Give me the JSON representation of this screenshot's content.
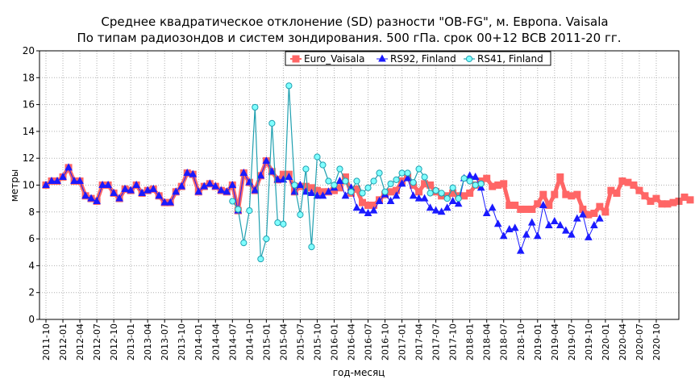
{
  "chart_data": {
    "type": "line",
    "title": "Среднее квадратическое отклонение (SD) разности \"OB-FG\", м. Европа. Vaisala",
    "subtitle": "По типам радиозондов и систем зондирования. 500 гПа. срок 00+12 ВСВ 2011-20 гг.",
    "xlabel": "год-месяц",
    "ylabel": "метры",
    "ylim": [
      0,
      20
    ],
    "yticks": [
      0,
      2,
      4,
      6,
      8,
      10,
      12,
      14,
      16,
      18,
      20
    ],
    "x_start": "2011-10",
    "x_end": "2020-12",
    "xtick_labels": [
      "2011-10",
      "2012-01",
      "2012-04",
      "2012-07",
      "2012-10",
      "2013-01",
      "2013-04",
      "2013-07",
      "2013-10",
      "2014-01",
      "2014-04",
      "2014-07",
      "2014-10",
      "2015-01",
      "2015-04",
      "2015-07",
      "2015-10",
      "2016-01",
      "2016-04",
      "2016-07",
      "2016-10",
      "2017-01",
      "2017-04",
      "2017-07",
      "2017-10",
      "2018-01",
      "2018-04",
      "2018-07",
      "2018-10",
      "2019-01",
      "2019-04",
      "2019-07",
      "2019-10",
      "2020-01",
      "2020-04",
      "2020-07",
      "2020-10"
    ],
    "grid": true,
    "legend_position": "top-right",
    "colors": {
      "euro": "#ff6666",
      "rs92": "#1a1aff",
      "rs41_line": "#20a0b0",
      "rs41_marker": "#80ffff",
      "grid": "#b0b0b0"
    },
    "series": [
      {
        "name": "Euro_Vaisala",
        "marker": "square",
        "start": "2011-10",
        "values": [
          10.0,
          10.3,
          10.3,
          10.6,
          11.3,
          10.3,
          10.3,
          9.2,
          9.0,
          8.8,
          10.0,
          10.0,
          9.4,
          9.0,
          9.7,
          9.6,
          10.0,
          9.4,
          9.6,
          9.7,
          9.2,
          8.7,
          8.7,
          9.5,
          9.9,
          10.9,
          10.8,
          9.5,
          9.9,
          10.1,
          9.9,
          9.6,
          9.5,
          10.0,
          8.1,
          10.9,
          10.2,
          9.6,
          10.7,
          11.8,
          11.0,
          10.4,
          10.8,
          10.8,
          9.5,
          9.9,
          9.9,
          9.8,
          9.6,
          9.5,
          9.5,
          9.6,
          9.8,
          10.6,
          9.4,
          9.7,
          8.7,
          8.5,
          8.5,
          8.9,
          9.3,
          9.5,
          9.6,
          10.3,
          10.6,
          10.0,
          9.5,
          10.1,
          10.0,
          9.5,
          9.2,
          9.2,
          9.4,
          9.2,
          9.2,
          9.4,
          10.0,
          10.3,
          10.5,
          9.9,
          10.0,
          10.1,
          8.5,
          8.5,
          8.2,
          8.2,
          8.2,
          8.6,
          9.3,
          8.5,
          9.3,
          10.6,
          9.3,
          9.2,
          9.3,
          8.2,
          7.8,
          7.9,
          8.4,
          8.0,
          9.6,
          9.4,
          10.3,
          10.2,
          10.0,
          9.6,
          9.2,
          8.8,
          9.0,
          8.6,
          8.6,
          8.7,
          8.8,
          9.1,
          8.9
        ]
      },
      {
        "name": "RS92, Finland",
        "marker": "triangle",
        "start": "2011-10",
        "values": [
          10.0,
          10.3,
          10.3,
          10.6,
          11.3,
          10.3,
          10.3,
          9.2,
          9.0,
          8.8,
          10.0,
          10.0,
          9.4,
          9.0,
          9.7,
          9.6,
          10.0,
          9.4,
          9.6,
          9.7,
          9.2,
          8.7,
          8.7,
          9.5,
          9.9,
          10.9,
          10.8,
          9.5,
          9.9,
          10.1,
          9.9,
          9.6,
          9.5,
          10.0,
          8.1,
          10.9,
          10.2,
          9.6,
          10.7,
          11.8,
          11.0,
          10.4,
          10.4,
          10.6,
          9.5,
          10.0,
          9.5,
          9.4,
          9.2,
          9.2,
          9.5,
          9.8,
          10.3,
          9.2,
          9.8,
          8.3,
          8.1,
          7.9,
          8.1,
          8.8,
          9.3,
          8.8,
          9.2,
          10.1,
          10.5,
          9.2,
          9.0,
          9.0,
          8.3,
          8.1,
          8.0,
          8.3,
          8.8,
          8.6,
          10.5,
          10.7,
          10.6,
          9.8,
          7.9,
          8.3,
          7.1,
          6.2,
          6.7,
          6.8,
          5.1,
          6.3,
          7.2,
          6.2,
          8.5,
          7.0,
          7.3,
          7.0,
          6.6,
          6.3,
          7.5,
          7.8,
          6.1,
          7.0,
          7.5
        ]
      },
      {
        "name": "RS41, Finland",
        "marker": "circle",
        "start": "2014-07",
        "values": [
          8.8,
          8.2,
          5.7,
          8.1,
          15.8,
          4.5,
          6.0,
          14.6,
          7.2,
          7.1,
          17.4,
          10.0,
          7.8,
          11.2,
          5.4,
          12.1,
          11.5,
          10.3,
          10.0,
          11.2,
          10.3,
          9.5,
          10.3,
          9.4,
          9.8,
          10.3,
          10.9,
          9.5,
          10.1,
          10.4,
          10.9,
          10.9,
          10.2,
          11.2,
          10.6,
          9.4,
          9.6,
          9.4,
          9.0,
          9.8,
          9.0,
          10.5,
          10.3,
          10.0,
          10.1
        ]
      }
    ]
  }
}
